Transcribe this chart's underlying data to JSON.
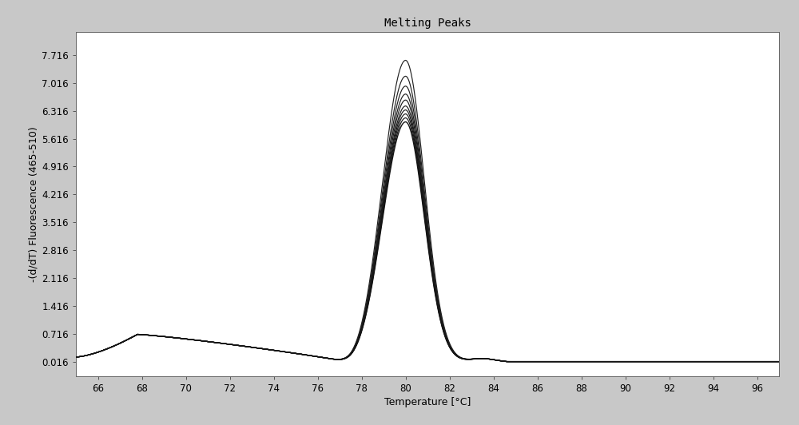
{
  "title": "Melting Peaks",
  "xlabel": "Temperature [°C]",
  "ylabel": "-(d/dT) Fluorescence (465-510)",
  "xlim": [
    65.0,
    97.0
  ],
  "ylim": [
    -0.35,
    8.3
  ],
  "xticks": [
    66,
    68,
    70,
    72,
    74,
    76,
    78,
    80,
    82,
    84,
    86,
    88,
    90,
    92,
    94,
    96
  ],
  "yticks": [
    0.016,
    0.716,
    1.416,
    2.116,
    2.816,
    3.516,
    4.216,
    4.916,
    5.616,
    6.316,
    7.016,
    7.716
  ],
  "ytick_labels": [
    "0.016",
    "0.716",
    "1.416",
    "2.116",
    "2.816",
    "3.516",
    "4.216",
    "4.916",
    "5.616",
    "6.316",
    "7.016",
    "7.716"
  ],
  "n_curves": 10,
  "peak_heights": [
    7.6,
    7.2,
    6.95,
    6.75,
    6.6,
    6.45,
    6.35,
    6.25,
    6.15,
    6.05
  ],
  "background_color": "#c8c8c8",
  "plot_bg_color": "#ffffff",
  "title_fontsize": 10,
  "axis_label_fontsize": 9,
  "tick_fontsize": 8.5
}
